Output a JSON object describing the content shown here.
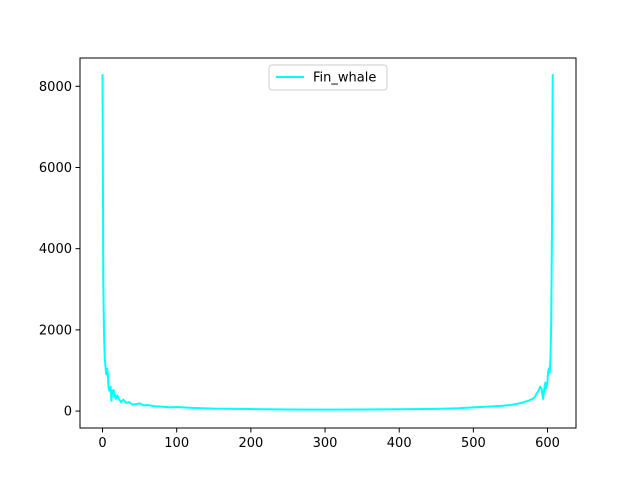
{
  "chart_data": {
    "type": "line",
    "title": "",
    "xlabel": "",
    "ylabel": "",
    "xlim": [
      -30.4,
      638.4
    ],
    "ylim": [
      -417,
      8697
    ],
    "xticks": [
      0,
      100,
      200,
      300,
      400,
      500,
      600
    ],
    "yticks": [
      0,
      2000,
      4000,
      6000,
      8000
    ],
    "grid": false,
    "legend_position": "top-center",
    "series": [
      {
        "name": "Fin_whale",
        "color": "#00ffff",
        "x": [
          0,
          1,
          2,
          3,
          4,
          5,
          6,
          7,
          8,
          9,
          10,
          11,
          12,
          13,
          14,
          15,
          16,
          17,
          18,
          20,
          22,
          25,
          28,
          32,
          36,
          40,
          45,
          50,
          55,
          60,
          70,
          80,
          90,
          100,
          120,
          150,
          200,
          250,
          300,
          350,
          400,
          450,
          480,
          500,
          520,
          540,
          550,
          560,
          565,
          570,
          575,
          580,
          583,
          586,
          588,
          590,
          592,
          594,
          595,
          596,
          597,
          598,
          599,
          600,
          601,
          602,
          603,
          604,
          605,
          606,
          607
        ],
        "y": [
          8300,
          3200,
          1900,
          1300,
          1100,
          900,
          1050,
          950,
          600,
          500,
          550,
          600,
          250,
          500,
          450,
          520,
          350,
          400,
          300,
          380,
          300,
          220,
          280,
          200,
          220,
          160,
          170,
          190,
          140,
          150,
          120,
          110,
          90,
          100,
          80,
          60,
          50,
          40,
          35,
          40,
          45,
          55,
          70,
          90,
          110,
          130,
          150,
          180,
          200,
          230,
          260,
          300,
          350,
          450,
          500,
          600,
          550,
          300,
          450,
          600,
          700,
          550,
          600,
          750,
          1000,
          1050,
          950,
          1300,
          2200,
          4500,
          8300
        ]
      }
    ]
  }
}
